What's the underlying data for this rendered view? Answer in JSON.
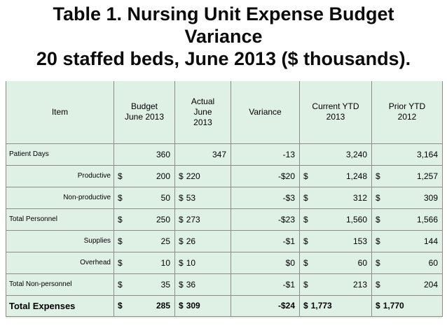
{
  "title": {
    "line1": "Table 1.  Nursing Unit Expense Budget",
    "line2": "Variance",
    "line3": "20 staffed beds, June 2013 ($ thousands)."
  },
  "table": {
    "headers": [
      {
        "lines": [
          "Item"
        ]
      },
      {
        "lines": [
          "Budget",
          "June 2013"
        ]
      },
      {
        "lines": [
          "Actual",
          "June",
          "2013"
        ]
      },
      {
        "lines": [
          "Variance"
        ]
      },
      {
        "lines": [
          "Current YTD",
          "2013"
        ]
      },
      {
        "lines": [
          "Prior YTD",
          "2012"
        ]
      }
    ],
    "rows": [
      {
        "item": "Patient Days",
        "budget": "360",
        "actual": "347",
        "variance": "-13",
        "current_ytd": "3,240",
        "prior_ytd": "3,164"
      },
      {
        "item": "Productive",
        "budget": "200",
        "actual": "220",
        "variance": "-$20",
        "current_ytd": "1,248",
        "prior_ytd": "1,257"
      },
      {
        "item": "Non-productive",
        "budget": "50",
        "actual": "53",
        "variance": "-$3",
        "current_ytd": "312",
        "prior_ytd": "309"
      },
      {
        "item": "Total Personnel",
        "budget": "250",
        "actual": "273",
        "variance": "-$23",
        "current_ytd": "1,560",
        "prior_ytd": "1,566"
      },
      {
        "item": "Supplies",
        "budget": "25",
        "actual": "26",
        "variance": "-$1",
        "current_ytd": "153",
        "prior_ytd": "144"
      },
      {
        "item": "Overhead",
        "budget": "10",
        "actual": "10",
        "variance": "$0",
        "current_ytd": "60",
        "prior_ytd": "60"
      },
      {
        "item": "Total Non-personnel",
        "budget": "35",
        "actual": "36",
        "variance": "-$1",
        "current_ytd": "213",
        "prior_ytd": "204"
      },
      {
        "item": "Total Expenses",
        "budget": "285",
        "actual": "309",
        "variance": "-$24",
        "current_ytd": "1,773",
        "prior_ytd": "1,770"
      }
    ],
    "currency_symbol": "$",
    "colors": {
      "body_fill": "#dff0e5",
      "grid": "#8c8c8c"
    }
  }
}
